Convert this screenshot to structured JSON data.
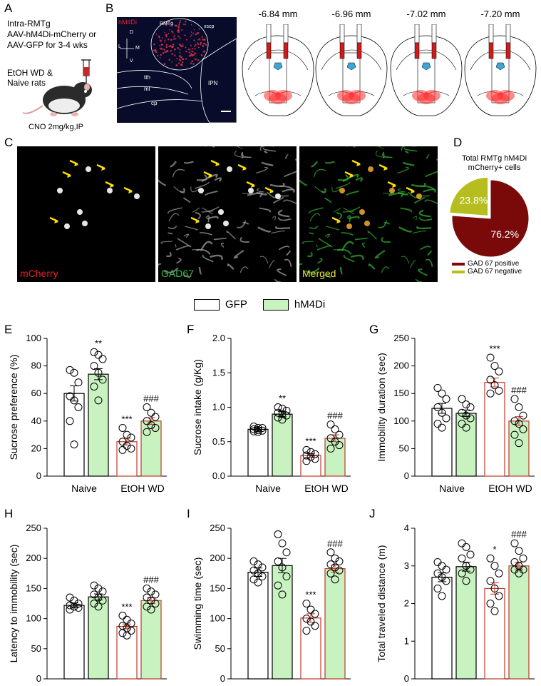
{
  "panel_labels": [
    "A",
    "B",
    "C",
    "D",
    "E",
    "F",
    "G",
    "H",
    "I",
    "J"
  ],
  "panelA": {
    "text_lines": [
      "Intra-RMTg",
      "AAV-hM4Di-mCherry or",
      "AAV-GFP for 3-4 wks"
    ],
    "bottom_lines": [
      "EtOH WD &",
      "Naive rats"
    ],
    "dose": "CNO 2mg/kg,IP"
  },
  "panelB": {
    "micro_labels": {
      "hm4di": "hM4Di",
      "rmtg": "RMTg",
      "xscp": "xscp",
      "tth": "tth",
      "ml": "ml",
      "ipn": "IPN",
      "cp": "cp"
    },
    "axes": {
      "d": "D",
      "v": "V",
      "l": "L",
      "m": "M"
    },
    "sections": [
      "-6.84 mm",
      "-6.96 mm",
      "-7.02 mm",
      "-7.20 mm"
    ]
  },
  "panelC": {
    "channels": [
      "mCherry",
      "GAD67",
      "Merged"
    ],
    "channel_colors": [
      "#e8202a",
      "#34c24a",
      "#e6e63a"
    ]
  },
  "panelD": {
    "title_lines": [
      "Total RMTg hM4Di",
      "mCherry+ cells"
    ],
    "legend": [
      "GAD 67 positive",
      "GAD 67 negative"
    ],
    "colors": [
      "#7a0a0a",
      "#b5be1e"
    ]
  },
  "legend": {
    "gfp": "GFP",
    "hm4di": "hM4Di",
    "gfp_color": "#ffffff",
    "hm4di_color": "#c8f2c0",
    "naive_edge": "#000000",
    "etoh_edge": "#c0392b"
  },
  "chart_data": [
    {
      "panel": "D",
      "type": "pie",
      "labels": [
        "GAD 67 positive",
        "GAD 67 negative"
      ],
      "values": [
        76.2,
        23.8
      ],
      "display": [
        "76.2%",
        "23.8%"
      ]
    },
    {
      "panel": "E",
      "type": "bar",
      "ylabel": "Sucrose preference (%)",
      "ylim": [
        0,
        100
      ],
      "yticks": [
        0,
        20,
        40,
        60,
        80,
        100
      ],
      "yticklabels": [
        "0",
        "20",
        "40",
        "60",
        "80",
        "100"
      ],
      "categories": [
        "Naive",
        "EtOH WD"
      ],
      "series": [
        {
          "name": "GFP",
          "values": [
            60,
            25
          ]
        },
        {
          "name": "hM4Di",
          "values": [
            74,
            40
          ]
        }
      ],
      "errors": [
        [
          5.5,
          2.5
        ],
        [
          4,
          2.5
        ]
      ],
      "points": [
        [
          [
            77,
            75,
            68,
            58,
            55,
            50,
            40,
            23
          ],
          [
            35,
            30,
            28,
            25,
            22,
            20,
            19
          ]
        ],
        [
          [
            90,
            88,
            85,
            80,
            75,
            70,
            65,
            55
          ],
          [
            50,
            46,
            43,
            40,
            37,
            35,
            32
          ]
        ]
      ],
      "annotations": [
        [
          "",
          "***"
        ],
        [
          "**",
          "###"
        ]
      ]
    },
    {
      "panel": "F",
      "type": "bar",
      "ylabel": "Sucrose intake (g/Kg)",
      "ylim": [
        0,
        2
      ],
      "yticks": [
        0,
        0.5,
        1,
        1.5,
        2
      ],
      "yticklabels": [
        "0.0",
        "0.5",
        "1.0",
        "1.5",
        "2.0"
      ],
      "categories": [
        "Naive",
        "EtOH WD"
      ],
      "series": [
        {
          "name": "GFP",
          "values": [
            0.68,
            0.3
          ]
        },
        {
          "name": "hM4Di",
          "values": [
            0.9,
            0.55
          ]
        }
      ],
      "errors": [
        [
          0.03,
          0.03
        ],
        [
          0.04,
          0.05
        ]
      ],
      "points": [
        [
          [
            0.72,
            0.7,
            0.7,
            0.68,
            0.67,
            0.66,
            0.65,
            0.64
          ],
          [
            0.38,
            0.35,
            0.32,
            0.3,
            0.28,
            0.25,
            0.22
          ]
        ],
        [
          [
            1.0,
            0.98,
            0.95,
            0.92,
            0.9,
            0.88,
            0.85,
            0.82
          ],
          [
            0.75,
            0.68,
            0.6,
            0.55,
            0.5,
            0.45,
            0.4
          ]
        ]
      ],
      "annotations": [
        [
          "",
          "***"
        ],
        [
          "**",
          "###"
        ]
      ]
    },
    {
      "panel": "G",
      "type": "bar",
      "ylabel": "Immobility duration (sec)",
      "ylim": [
        0,
        250
      ],
      "yticks": [
        0,
        50,
        100,
        150,
        200,
        250
      ],
      "yticklabels": [
        "0",
        "50",
        "100",
        "150",
        "200",
        "250"
      ],
      "categories": [
        "Naive",
        "EtOH WD"
      ],
      "series": [
        {
          "name": "GFP",
          "values": [
            123,
            170
          ]
        },
        {
          "name": "hM4Di",
          "values": [
            114,
            100
          ]
        }
      ],
      "errors": [
        [
          9,
          8
        ],
        [
          6,
          8
        ]
      ],
      "points": [
        [
          [
            160,
            150,
            140,
            125,
            115,
            105,
            95,
            88
          ],
          [
            215,
            200,
            190,
            175,
            165,
            155,
            150
          ]
        ],
        [
          [
            140,
            130,
            125,
            115,
            110,
            105,
            95,
            88
          ],
          [
            140,
            125,
            110,
            100,
            95,
            85,
            75,
            60
          ]
        ]
      ],
      "annotations": [
        [
          "",
          "***"
        ],
        [
          "",
          "###"
        ]
      ]
    },
    {
      "panel": "H",
      "type": "bar",
      "ylabel": "Latency to immobility (sec)",
      "ylim": [
        0,
        250
      ],
      "yticks": [
        0,
        50,
        100,
        150,
        200,
        250
      ],
      "yticklabels": [
        "0",
        "50",
        "100",
        "150",
        "200",
        "250"
      ],
      "categories": [
        "Naive",
        "EtOH WD"
      ],
      "series": [
        {
          "name": "GFP",
          "values": [
            122,
            87
          ]
        },
        {
          "name": "hM4Di",
          "values": [
            136,
            130
          ]
        }
      ],
      "errors": [
        [
          4,
          4
        ],
        [
          5,
          5
        ]
      ],
      "points": [
        [
          [
            135,
            130,
            125,
            122,
            120,
            118,
            115
          ],
          [
            105,
            98,
            92,
            88,
            84,
            80,
            76,
            72
          ]
        ],
        [
          [
            155,
            150,
            145,
            140,
            135,
            130,
            125,
            120
          ],
          [
            150,
            145,
            140,
            135,
            130,
            125,
            120,
            115
          ]
        ]
      ],
      "annotations": [
        [
          "",
          "***"
        ],
        [
          "",
          "###"
        ]
      ]
    },
    {
      "panel": "I",
      "type": "bar",
      "ylabel": "Swimming time (sec)",
      "ylim": [
        0,
        250
      ],
      "yticks": [
        0,
        50,
        100,
        150,
        200,
        250
      ],
      "yticklabels": [
        "0",
        "50",
        "100",
        "150",
        "200",
        "250"
      ],
      "categories": [
        "Naive",
        "EtOH WD"
      ],
      "series": [
        {
          "name": "GFP",
          "values": [
            177,
            101
          ]
        },
        {
          "name": "hM4Di",
          "values": [
            188,
            183
          ]
        }
      ],
      "errors": [
        [
          7,
          7
        ],
        [
          12,
          6
        ]
      ],
      "points": [
        [
          [
            195,
            190,
            185,
            180,
            175,
            170,
            165,
            160
          ],
          [
            125,
            115,
            108,
            100,
            95,
            88,
            80
          ]
        ],
        [
          [
            240,
            225,
            210,
            195,
            185,
            170,
            155,
            140
          ],
          [
            210,
            200,
            195,
            190,
            185,
            180,
            175,
            165
          ]
        ]
      ],
      "annotations": [
        [
          "",
          "***"
        ],
        [
          "",
          "###"
        ]
      ]
    },
    {
      "panel": "J",
      "type": "bar",
      "ylabel": "Total traveled distance (m)",
      "ylim": [
        0,
        4
      ],
      "yticks": [
        0,
        1,
        2,
        3,
        4
      ],
      "yticklabels": [
        "0",
        "1",
        "2",
        "3",
        "4"
      ],
      "categories": [
        "Naive",
        "EtOH WD"
      ],
      "series": [
        {
          "name": "GFP",
          "values": [
            2.7,
            2.4
          ]
        },
        {
          "name": "hM4Di",
          "values": [
            2.98,
            3.0
          ]
        }
      ],
      "errors": [
        [
          0.12,
          0.15
        ],
        [
          0.12,
          0.1
        ]
      ],
      "points": [
        [
          [
            3.1,
            3.0,
            2.9,
            2.8,
            2.7,
            2.6,
            2.4,
            2.2
          ],
          [
            3.2,
            3.0,
            2.8,
            2.6,
            2.4,
            2.2,
            2.0,
            1.8
          ]
        ],
        [
          [
            3.6,
            3.5,
            3.3,
            3.2,
            3.0,
            2.9,
            2.8,
            2.6
          ],
          [
            3.6,
            3.4,
            3.2,
            3.1,
            3.0,
            2.9,
            2.9,
            2.8
          ]
        ]
      ],
      "annotations": [
        [
          "",
          "*"
        ],
        [
          "",
          "###"
        ]
      ]
    }
  ]
}
